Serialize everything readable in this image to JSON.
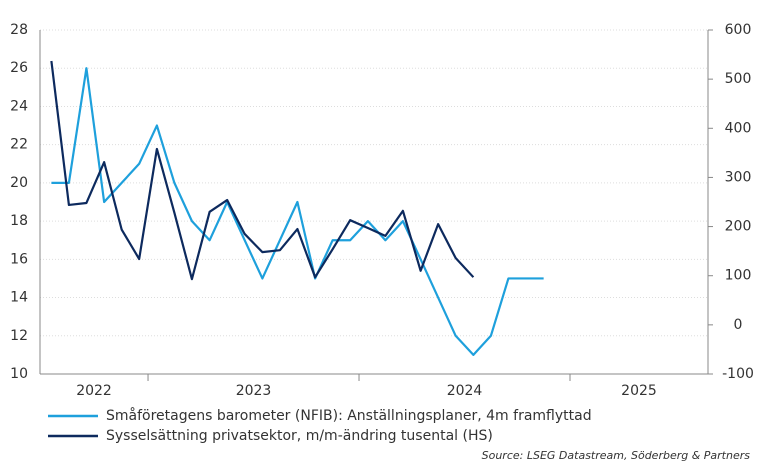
{
  "chart_data": {
    "type": "line",
    "x": [
      2022.542,
      2022.625,
      2022.708,
      2022.792,
      2022.875,
      2022.958,
      2023.042,
      2023.125,
      2023.208,
      2023.292,
      2023.375,
      2023.458,
      2023.542,
      2023.625,
      2023.708,
      2023.792,
      2023.875,
      2023.958,
      2024.042,
      2024.125,
      2024.208,
      2024.292,
      2024.375,
      2024.458,
      2024.542,
      2024.625,
      2024.708,
      2024.792,
      2024.875
    ],
    "xlim": [
      2022.488,
      2025.654
    ],
    "year_boundaries": [
      2023,
      2024,
      2025
    ],
    "year_labels": [
      "2022",
      "2023",
      "2024",
      "2025"
    ],
    "series": [
      {
        "name": "Småföretagens barometer (NFIB): Anställningsplaner, 4m framflyttad",
        "color": "#1ea0dc",
        "values": [
          20,
          20,
          26,
          19,
          20,
          21,
          23,
          20,
          18,
          17,
          19,
          17,
          15,
          17,
          19,
          15,
          17,
          17,
          18,
          17,
          18,
          16,
          14,
          12,
          11,
          12,
          15,
          15,
          15
        ]
      },
      {
        "name": "Sysselsättning privatsektor, m/m-ändring tusental (HS)",
        "color": "#0d2a5e",
        "axis": "y2",
        "values": [
          537,
          244,
          248,
          331,
          194,
          134,
          358,
          228,
          93,
          230,
          254,
          185,
          148,
          152,
          195,
          97,
          154,
          213,
          197,
          181,
          232,
          110,
          205,
          136,
          97,
          null,
          null,
          null,
          null
        ]
      }
    ],
    "ylim": [
      10,
      28
    ],
    "yticks": [
      10,
      12,
      14,
      16,
      18,
      20,
      22,
      24,
      26,
      28
    ],
    "y2lim": [
      -100,
      600
    ],
    "y2ticks": [
      -100,
      0,
      100,
      200,
      300,
      400,
      500,
      600
    ],
    "grid": true,
    "source": "Source: LSEG Datastream, Söderberg & Partners"
  }
}
